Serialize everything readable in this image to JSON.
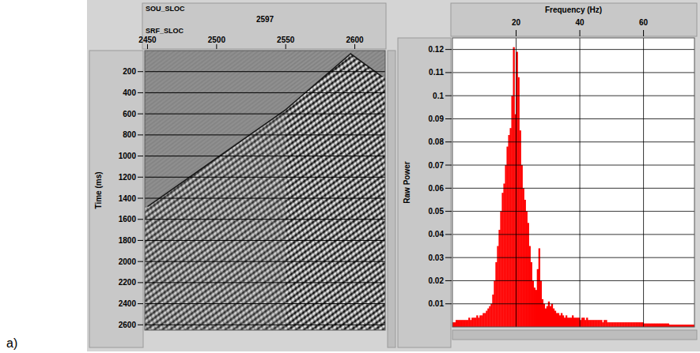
{
  "panel_label": "a)",
  "chart_data": [
    {
      "type": "seismic",
      "source_label": "SOU_SLOC",
      "source_value": 2597,
      "xlabel": "SRF_SLOC",
      "ylabel": "Time (ms)",
      "xlim": [
        2448,
        2622
      ],
      "xticks": [
        2450,
        2500,
        2550,
        2600
      ],
      "ylim": [
        0,
        2650
      ],
      "yticks": [
        200,
        400,
        600,
        800,
        1000,
        1200,
        1400,
        1600,
        1800,
        2000,
        2200,
        2400,
        2600
      ],
      "grid": true,
      "x": [
        2450,
        2500,
        2550,
        2597,
        2620
      ],
      "values": [
        1480,
        1020,
        560,
        30,
        250
      ]
    },
    {
      "type": "histogram",
      "xlabel": "Frequency (Hz)",
      "ylabel": "Raw Power",
      "xlim": [
        0,
        76
      ],
      "xticks": [
        20,
        40,
        60
      ],
      "ylim": [
        0,
        0.125
      ],
      "yticks": [
        0.01,
        0.02,
        0.03,
        0.04,
        0.05,
        0.06,
        0.07,
        0.08,
        0.09,
        0.1,
        0.11,
        0.12
      ],
      "grid": true,
      "color": "#ff0000",
      "bins": [
        0,
        0.5,
        1,
        1.5,
        2,
        2.5,
        3,
        3.5,
        4,
        4.5,
        5,
        5.5,
        6,
        6.5,
        7,
        7.5,
        8,
        8.5,
        9,
        9.5,
        10,
        10.5,
        11,
        11.5,
        12,
        12.5,
        13,
        13.5,
        14,
        14.5,
        15,
        15.5,
        16,
        16.5,
        17,
        17.5,
        18,
        18.5,
        19,
        19.5,
        20,
        20.5,
        21,
        21.5,
        22,
        22.5,
        23,
        23.5,
        24,
        24.5,
        25,
        25.5,
        26,
        26.5,
        27,
        27.5,
        28,
        28.5,
        29,
        29.5,
        30,
        30.5,
        31,
        31.5,
        32,
        32.5,
        33,
        33.5,
        34,
        34.5,
        35,
        35.5,
        36,
        36.5,
        37,
        37.5,
        38,
        38.5,
        39,
        39.5,
        40,
        40.5,
        41,
        41.5,
        42,
        42.5,
        43,
        43.5,
        44,
        44.5,
        45,
        45.5,
        46,
        46.5,
        47,
        47.5,
        48,
        48.5,
        49,
        49.5,
        50,
        50.5,
        51,
        51.5,
        52,
        52.5,
        53,
        53.5,
        54,
        54.5,
        55,
        55.5,
        56,
        56.5,
        57,
        57.5,
        58,
        58.5,
        59,
        59.5,
        60,
        60.5,
        61,
        61.5,
        62,
        62.5,
        63,
        63.5,
        64,
        64.5,
        65,
        65.5,
        66,
        66.5,
        67,
        67.5,
        68,
        68.5,
        69,
        69.5,
        70,
        70.5,
        71,
        71.5,
        72,
        72.5,
        73,
        73.5,
        74,
        74.5,
        75,
        75.5,
        76
      ],
      "values": [
        0.002,
        0.002,
        0.003,
        0.003,
        0.003,
        0.003,
        0.003,
        0.003,
        0.003,
        0.003,
        0.004,
        0.003,
        0.004,
        0.004,
        0.004,
        0.005,
        0.004,
        0.005,
        0.005,
        0.006,
        0.006,
        0.007,
        0.008,
        0.009,
        0.01,
        0.014,
        0.02,
        0.028,
        0.035,
        0.042,
        0.05,
        0.058,
        0.062,
        0.07,
        0.078,
        0.083,
        0.086,
        0.1,
        0.121,
        0.092,
        0.119,
        0.108,
        0.085,
        0.07,
        0.06,
        0.055,
        0.05,
        0.045,
        0.035,
        0.028,
        0.02,
        0.017,
        0.016,
        0.025,
        0.034,
        0.02,
        0.012,
        0.01,
        0.008,
        0.009,
        0.011,
        0.009,
        0.01,
        0.008,
        0.007,
        0.006,
        0.006,
        0.005,
        0.006,
        0.005,
        0.004,
        0.005,
        0.004,
        0.004,
        0.004,
        0.005,
        0.004,
        0.004,
        0.004,
        0.004,
        0.003,
        0.004,
        0.004,
        0.003,
        0.004,
        0.003,
        0.003,
        0.003,
        0.003,
        0.003,
        0.003,
        0.003,
        0.003,
        0.003,
        0.002,
        0.003,
        0.003,
        0.002,
        0.002,
        0.002,
        0.002,
        0.002,
        0.002,
        0.002,
        0.002,
        0.002,
        0.002,
        0.002,
        0.002,
        0.002,
        0.002,
        0.002,
        0.002,
        0.002,
        0.002,
        0.002,
        0.002,
        0.002,
        0.002,
        0.002,
        0.0015,
        0.0015,
        0.0015,
        0.0015,
        0.0015,
        0.0015,
        0.0015,
        0.0015,
        0.0015,
        0.0015,
        0.0015,
        0.0015,
        0.0015,
        0.0015,
        0.0015,
        0.0015,
        0.001,
        0.001,
        0.001,
        0.001,
        0.001,
        0.001,
        0.001,
        0.001,
        0.001,
        0.001,
        0.001,
        0.001,
        0.001,
        0.001,
        0.001,
        0.001
      ]
    }
  ]
}
